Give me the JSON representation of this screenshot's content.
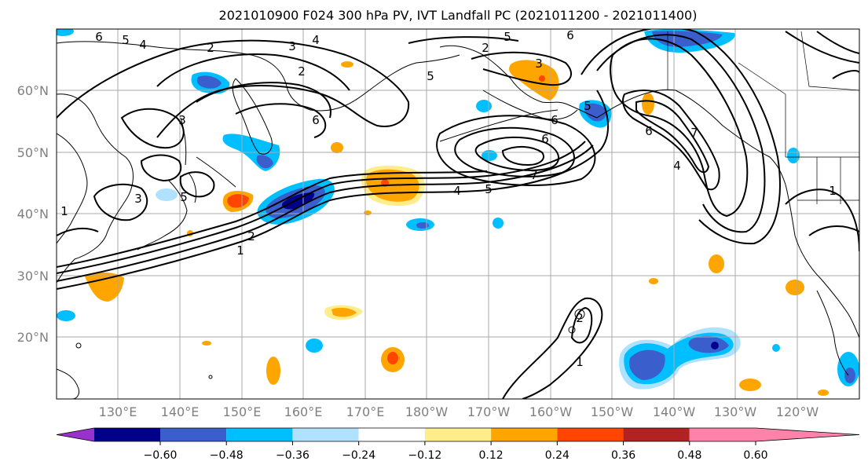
{
  "title": "2021010900 F024 300 hPa PV, IVT Landfall PC (2021011200 - 2021011400)",
  "lat_labels": [
    "20°N",
    "30°N",
    "40°N",
    "50°N",
    "60°N"
  ],
  "lon_labels": [
    "130°E",
    "140°E",
    "150°E",
    "160°E",
    "170°E",
    "180°W",
    "170°W",
    "160°W",
    "150°W",
    "140°W",
    "130°W",
    "120°W"
  ],
  "colorbar": {
    "tick_labels": [
      "−0.60",
      "−0.48",
      "−0.36",
      "−0.24",
      "−0.12",
      "0.12",
      "0.24",
      "0.36",
      "0.48",
      "0.60"
    ],
    "colors": [
      "#9932cc",
      "#00008b",
      "#3a5fcd",
      "#00bfff",
      "#b0e2ff",
      "#ffffff",
      "#ffec8b",
      "#ffa500",
      "#ff4500",
      "#b22222",
      "#ff82ab"
    ]
  },
  "contour_labels": [
    "6",
    "5",
    "4",
    "2",
    "3",
    "4",
    "5",
    "2",
    "5",
    "6",
    "2",
    "3",
    "6",
    "3",
    "6",
    "5",
    "6",
    "7",
    "4",
    "5",
    "6",
    "7",
    "4",
    "1",
    "1",
    "2",
    "1",
    "2",
    "5",
    "3",
    "1"
  ],
  "colors": {
    "frame": "#000000",
    "grid": "#a9a9a9",
    "contour": "#000000",
    "coast": "#000000"
  }
}
